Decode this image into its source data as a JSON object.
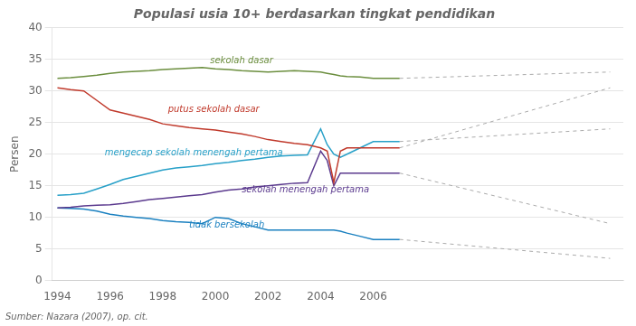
{
  "chart_data": {
    "type": "line",
    "title": "Populasi usia 10+ berdasarkan tingkat pendidikan",
    "y_label": "Persen",
    "source": "Sumber: Nazara (2007), op. cit.",
    "x": [
      1994,
      1994.5,
      1995,
      1995.5,
      1996,
      1996.5,
      1997,
      1997.5,
      1998,
      1998.5,
      1999,
      1999.5,
      2000,
      2000.5,
      2001,
      2001.5,
      2002,
      2002.5,
      2003,
      2003.5,
      2004,
      2004.25,
      2004.5,
      2004.75,
      2005,
      2005.5,
      2006,
      2006.5,
      2007
    ],
    "xlim": [
      1993.8,
      2015.5
    ],
    "xticks": [
      1994,
      1996,
      1998,
      2000,
      2002,
      2004,
      2006
    ],
    "ylim": [
      0,
      40
    ],
    "yticks": [
      0,
      5,
      10,
      15,
      20,
      25,
      30,
      35,
      40
    ],
    "grid": "y",
    "series": [
      {
        "name": "sekolah dasar",
        "color": "#6b8e3e",
        "values": [
          32.0,
          32.1,
          32.3,
          32.5,
          32.8,
          33.0,
          33.1,
          33.2,
          33.4,
          33.5,
          33.6,
          33.7,
          33.5,
          33.4,
          33.2,
          33.1,
          33.0,
          33.1,
          33.2,
          33.1,
          33.0,
          32.8,
          32.6,
          32.4,
          32.3,
          32.2,
          32.0,
          32.0,
          32.0
        ]
      },
      {
        "color": "#aaaaaa",
        "line_style": "dotted",
        "x": [
          2007,
          2015
        ],
        "values": [
          32.0,
          33.0
        ]
      },
      {
        "name": "putus sekolah dasar",
        "color": "#c0392b",
        "values": [
          30.5,
          30.2,
          30.0,
          28.5,
          27.0,
          26.5,
          26.0,
          25.5,
          24.8,
          24.5,
          24.2,
          24.0,
          23.8,
          23.5,
          23.2,
          22.8,
          22.3,
          22.0,
          21.7,
          21.5,
          21.0,
          20.5,
          15.5,
          20.5,
          21.0,
          21.0,
          21.0,
          21.0,
          21.0
        ]
      },
      {
        "color": "#aaaaaa",
        "line_style": "dotted",
        "x": [
          2007,
          2015
        ],
        "values": [
          21.0,
          30.5
        ]
      },
      {
        "name": "mengecap sekolah menengah pertama",
        "color": "#27a0c8",
        "values": [
          13.5,
          13.6,
          13.8,
          14.5,
          15.2,
          16.0,
          16.5,
          17.0,
          17.5,
          17.8,
          18.0,
          18.2,
          18.5,
          18.7,
          19.0,
          19.2,
          19.5,
          19.7,
          19.8,
          19.9,
          24.0,
          21.5,
          20.0,
          19.5,
          20.0,
          21.0,
          22.0,
          22.0,
          22.0
        ]
      },
      {
        "color": "#aaaaaa",
        "line_style": "dotted",
        "x": [
          2007,
          2015
        ],
        "values": [
          22.0,
          24.0
        ]
      },
      {
        "name": "sekolah menengah pertama",
        "color": "#5b3a8e",
        "values": [
          11.5,
          11.6,
          11.8,
          11.9,
          12.0,
          12.2,
          12.5,
          12.8,
          13.0,
          13.2,
          13.4,
          13.6,
          14.0,
          14.3,
          14.5,
          14.8,
          15.0,
          15.2,
          15.4,
          15.5,
          20.5,
          19.0,
          15.0,
          17.0,
          17.0,
          17.0,
          17.0,
          17.0,
          17.0
        ]
      },
      {
        "color": "#aaaaaa",
        "line_style": "dotted",
        "x": [
          2007,
          2015
        ],
        "values": [
          17.0,
          9.0
        ]
      },
      {
        "name": "tidak bersekolah",
        "color": "#1a80c0",
        "values": [
          11.5,
          11.4,
          11.3,
          11.0,
          10.5,
          10.2,
          10.0,
          9.8,
          9.5,
          9.3,
          9.2,
          9.0,
          10.0,
          9.8,
          9.0,
          8.5,
          8.0,
          8.0,
          8.0,
          8.0,
          8.0,
          8.0,
          8.0,
          7.8,
          7.5,
          7.0,
          6.5,
          6.5,
          6.5
        ]
      },
      {
        "color": "#aaaaaa",
        "line_style": "dotted",
        "x": [
          2007,
          2015
        ],
        "values": [
          6.5,
          3.5
        ]
      }
    ],
    "annotations": [
      {
        "text": "sekolah dasar",
        "x": 1999.8,
        "y": 34.8,
        "color": "#6b8e3e"
      },
      {
        "text": "putus sekolah dasar",
        "x": 1998.2,
        "y": 27.0,
        "color": "#c0392b"
      },
      {
        "text": "mengecap sekolah menengah pertama",
        "x": 1995.8,
        "y": 20.2,
        "color": "#27a0c8"
      },
      {
        "text": "sekolah menengah pertama",
        "x": 2001.0,
        "y": 14.3,
        "color": "#5b3a8e"
      },
      {
        "text": "tidak bersekolah",
        "x": 1999.0,
        "y": 8.8,
        "color": "#1a80c0"
      }
    ]
  }
}
